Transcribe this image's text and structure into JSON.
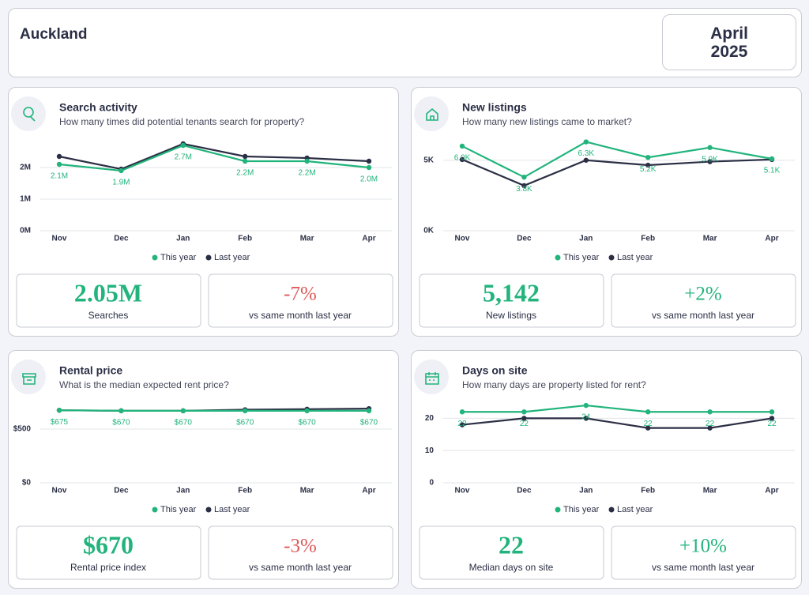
{
  "header": {
    "location": "Auckland",
    "month": "April",
    "year": "2025"
  },
  "chart_data": [
    {
      "type": "line",
      "title": "Search activity",
      "subtitle": "How many times did potential tenants search for property?",
      "categories": [
        "Nov",
        "Dec",
        "Jan",
        "Feb",
        "Mar",
        "Apr"
      ],
      "series": [
        {
          "name": "This year",
          "color": "#22b47c",
          "values": [
            2.1,
            1.9,
            2.7,
            2.2,
            2.2,
            2.0
          ],
          "value_labels": [
            "2.1M",
            "1.9M",
            "2.7M",
            "2.2M",
            "2.2M",
            "2.0M"
          ]
        },
        {
          "name": "Last year",
          "color": "#2b2f45",
          "values": [
            2.35,
            1.95,
            2.75,
            2.35,
            2.3,
            2.2
          ]
        }
      ],
      "ylim": [
        0,
        2.9
      ],
      "yticks": [
        {
          "value": 0,
          "label": "0M"
        },
        {
          "value": 1,
          "label": "1M"
        },
        {
          "value": 2,
          "label": "2M"
        }
      ],
      "grid": true,
      "kpi": {
        "value": "2.05M",
        "label": "Searches"
      },
      "change": {
        "value": "-7%",
        "label": "vs same month last year",
        "color": "#e05a5a"
      }
    },
    {
      "type": "line",
      "title": "New listings",
      "subtitle": "How many new listings came to market?",
      "categories": [
        "Nov",
        "Dec",
        "Jan",
        "Feb",
        "Mar",
        "Apr"
      ],
      "series": [
        {
          "name": "This year",
          "color": "#22b47c",
          "values": [
            6.0,
            3.8,
            6.3,
            5.2,
            5.9,
            5.1
          ],
          "value_labels": [
            "6.0K",
            "3.8K",
            "6.3K",
            "5.2K",
            "5.9K",
            "5.1K"
          ]
        },
        {
          "name": "Last year",
          "color": "#2b2f45",
          "values": [
            5.05,
            3.2,
            5.0,
            4.65,
            4.9,
            5.05
          ]
        }
      ],
      "ylim": [
        0,
        6.5
      ],
      "yticks": [
        {
          "value": 0,
          "label": "0K"
        },
        {
          "value": 5,
          "label": "5K"
        }
      ],
      "grid": true,
      "kpi": {
        "value": "5,142",
        "label": "New listings"
      },
      "change": {
        "value": "+2%",
        "label": "vs same month last year",
        "color": "#22b47c"
      }
    },
    {
      "type": "line",
      "title": "Rental price",
      "subtitle": "What is the median expected rent price?",
      "categories": [
        "Nov",
        "Dec",
        "Jan",
        "Feb",
        "Mar",
        "Apr"
      ],
      "series": [
        {
          "name": "This year",
          "color": "#22b47c",
          "values": [
            675,
            670,
            670,
            670,
            670,
            670
          ],
          "value_labels": [
            "$675",
            "$670",
            "$670",
            "$670",
            "$670",
            "$670"
          ]
        },
        {
          "name": "Last year",
          "color": "#2b2f45",
          "values": [
            675,
            670,
            670,
            680,
            685,
            690
          ]
        }
      ],
      "ylim": [
        0,
        750
      ],
      "yticks": [
        {
          "value": 0,
          "label": "$0"
        },
        {
          "value": 500,
          "label": "$500"
        }
      ],
      "grid": true,
      "kpi": {
        "value": "$670",
        "label": "Rental price index"
      },
      "change": {
        "value": "-3%",
        "label": "vs same month last year",
        "color": "#e05a5a"
      }
    },
    {
      "type": "line",
      "title": "Days on site",
      "subtitle": "How many days are property listed for rent?",
      "categories": [
        "Nov",
        "Dec",
        "Jan",
        "Feb",
        "Mar",
        "Apr"
      ],
      "series": [
        {
          "name": "This year",
          "color": "#22b47c",
          "values": [
            22,
            22,
            24,
            22,
            22,
            22
          ]
        },
        {
          "name": "Last year",
          "color": "#2b2f45",
          "values": [
            18,
            20,
            20,
            17,
            17,
            20
          ]
        }
      ],
      "ylim": [
        0,
        25
      ],
      "yticks": [
        0,
        10,
        20
      ],
      "grid": true,
      "kpi": {
        "value": "22",
        "label": "Median days on site"
      },
      "change": {
        "value": "+10%",
        "label": "vs same month last year",
        "color": "#22b47c"
      }
    }
  ]
}
